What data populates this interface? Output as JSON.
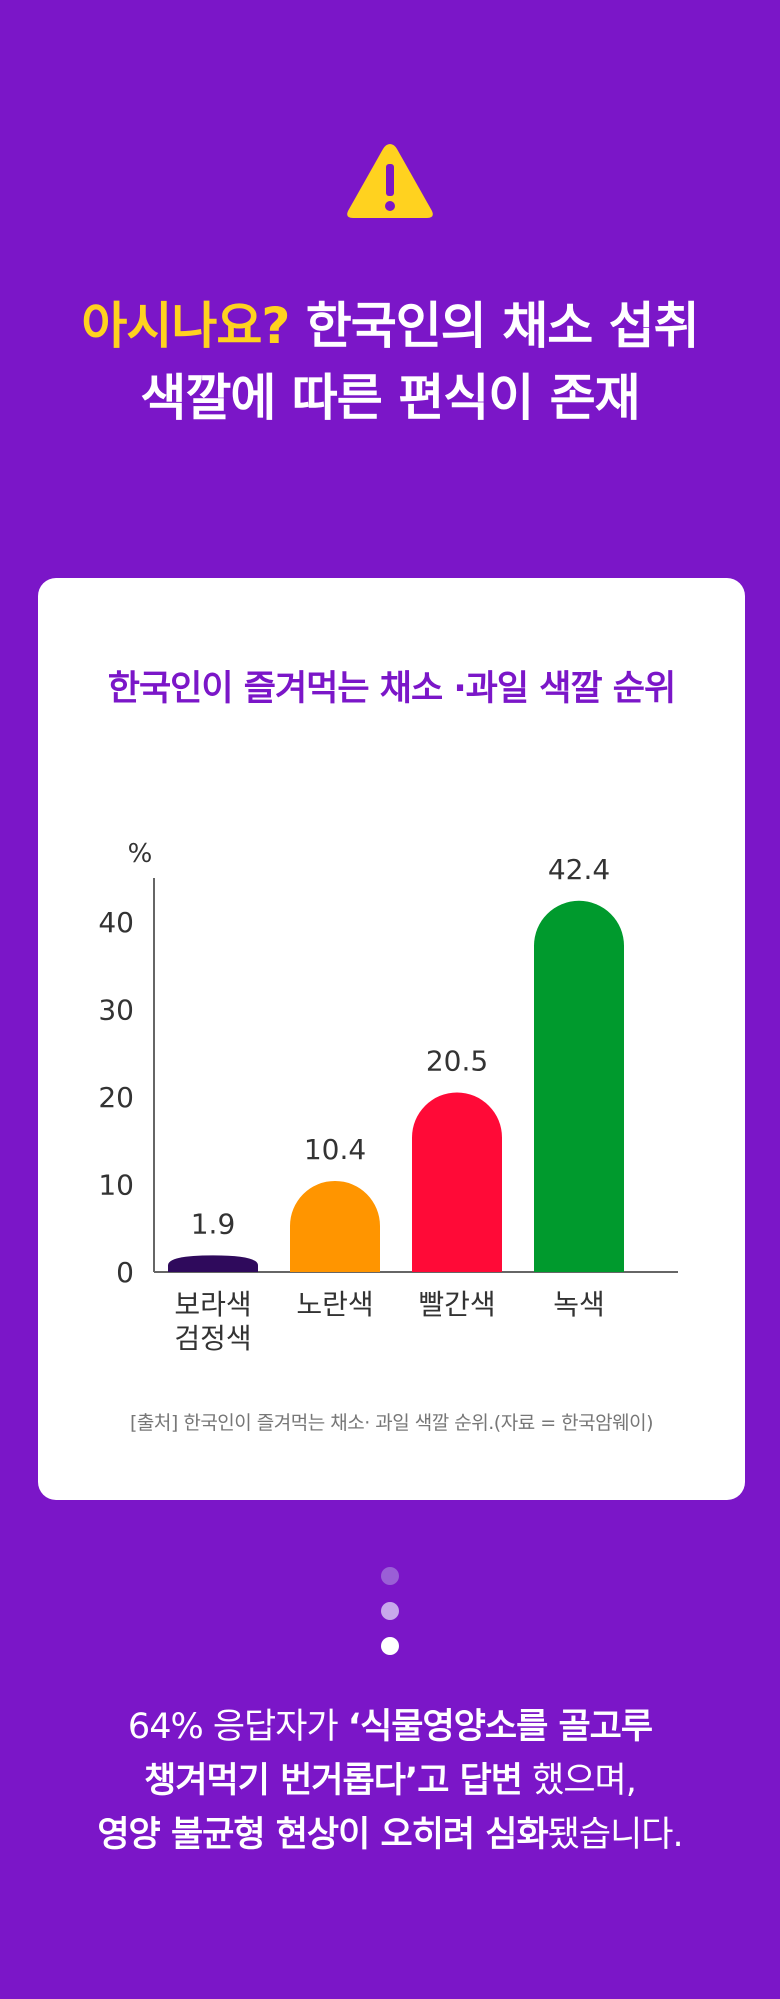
{
  "header": {
    "accent": "아시나요?",
    "line1_rest": " 한국인의 채소 섭취",
    "line2": "색깔에 따른 편식이 존재"
  },
  "card": {
    "source": "[출처] 한국인이 즐겨먹는 채소· 과일 색깔 순위.(자료 = 한국암웨이)"
  },
  "chart_data": {
    "type": "bar",
    "title": "한국인이 즐겨먹는 채소 ·과일 색깔 순위",
    "ylabel": "%",
    "ylim": [
      0,
      45
    ],
    "yticks": [
      "0",
      "10",
      "20",
      "30",
      "40"
    ],
    "categories": [
      [
        "보라색",
        "검정색"
      ],
      [
        "노란색"
      ],
      [
        "빨간색"
      ],
      [
        "녹색"
      ]
    ],
    "values": [
      1.9,
      10.4,
      20.5,
      42.4
    ],
    "value_labels": [
      "1.9",
      "10.4",
      "20.5",
      "42.4"
    ],
    "colors": [
      "#2f0a5c",
      "#ff9500",
      "#ff0a37",
      "#009a2d"
    ],
    "grid": false
  },
  "footer": {
    "l1a": "64% 응답자가 ",
    "l1b": "‘식물영양소를 골고루",
    "l2a": "챙겨먹기 번거롭다’고 답변",
    "l2b": " 했으며,",
    "l3a": "영양 불균형 현상이 오히려 심화",
    "l3b": "됐습니다."
  },
  "colors": {
    "background": "#7b16c8",
    "accent": "#ffd21f",
    "warning": "#ffd21f"
  },
  "icons": {
    "warning": "warning-icon"
  }
}
